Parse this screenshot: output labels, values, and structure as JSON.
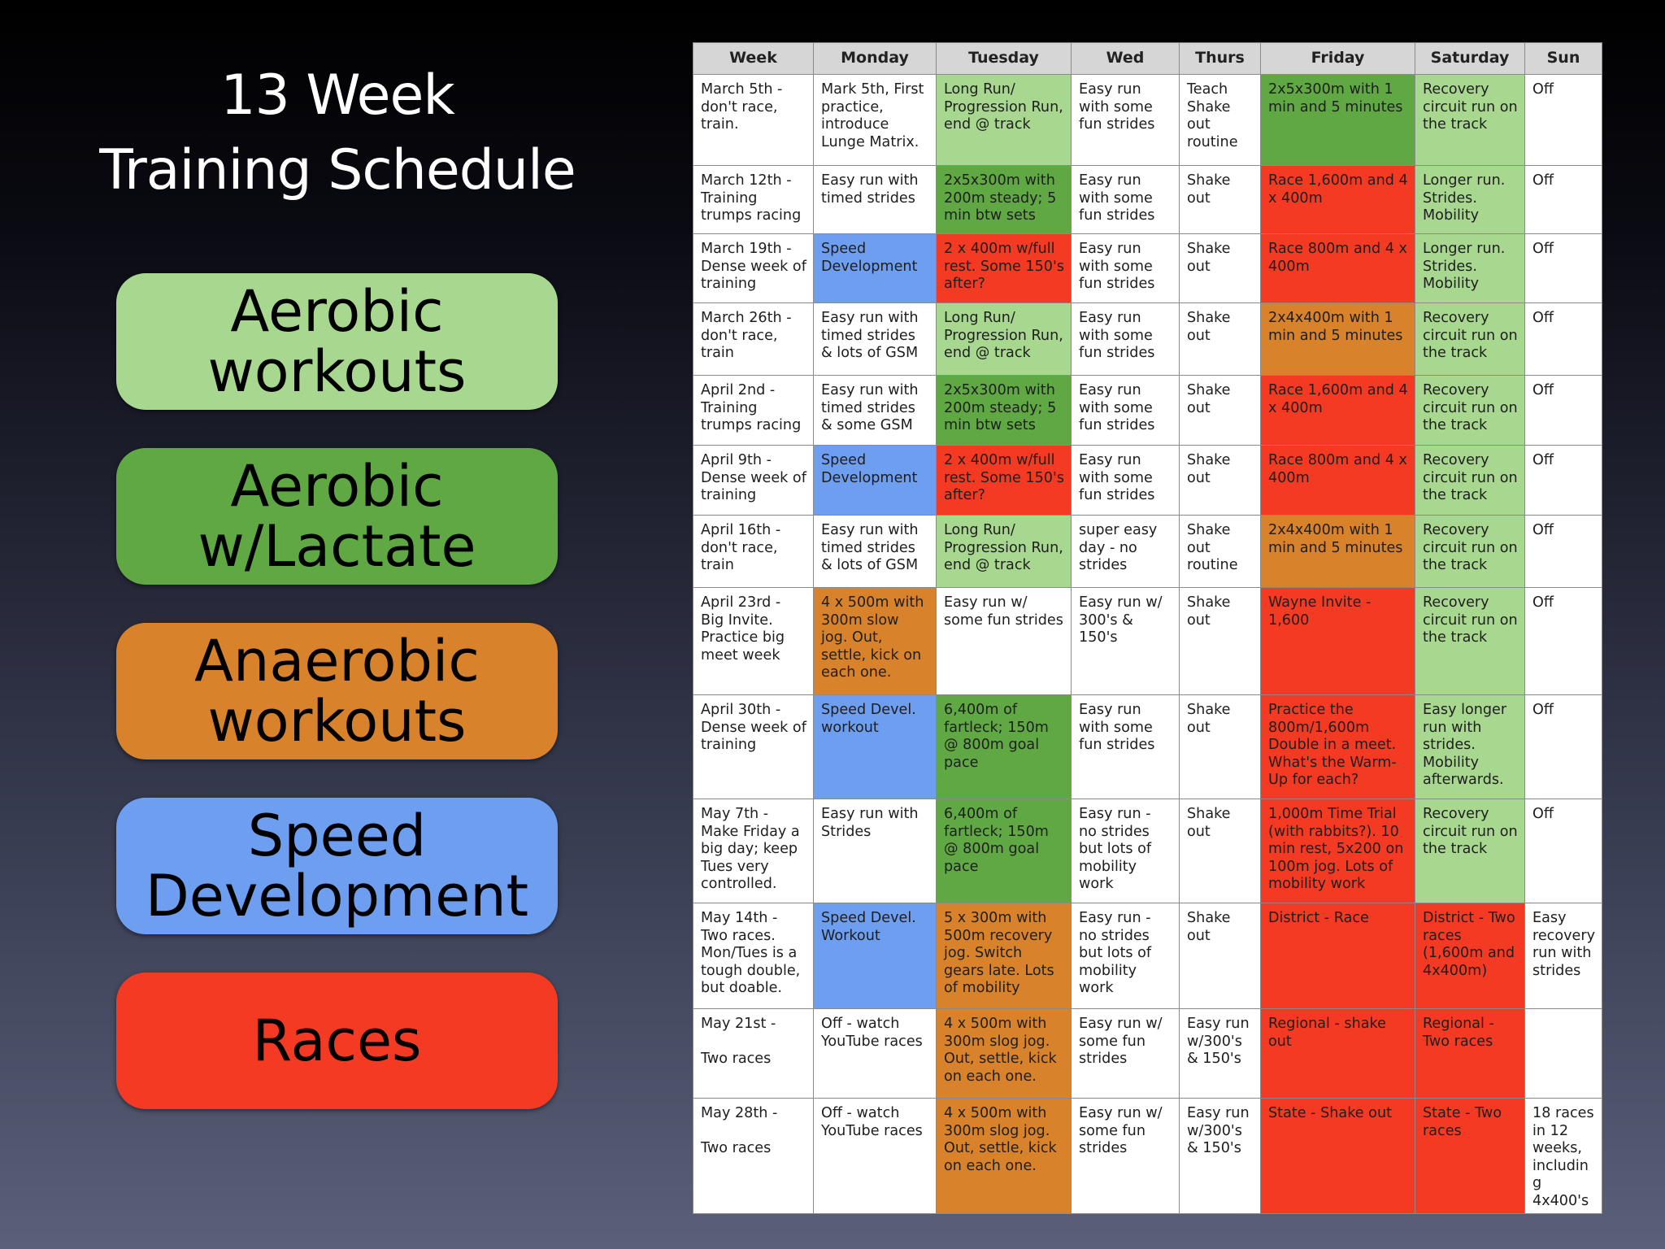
{
  "slide": {
    "title_line1": "13 Week",
    "title_line2": "Training Schedule"
  },
  "colors": {
    "aerobic": "#a8d890",
    "lactate": "#5fa844",
    "anaerobic": "#d8822c",
    "speed": "#6e9ef0",
    "race": "#f43a22",
    "off": "#ffffff"
  },
  "legend": [
    {
      "label": "Aerobic\nworkouts",
      "color": "#a8d890"
    },
    {
      "label": "Aerobic\nw/Lactate",
      "color": "#5fa844"
    },
    {
      "label": "Anaerobic\nworkouts",
      "color": "#d8822c"
    },
    {
      "label": "Speed\nDevelopment",
      "color": "#6e9ef0"
    },
    {
      "label": "Races",
      "color": "#f43a22"
    }
  ],
  "schedule": {
    "headers": [
      "Week",
      "Monday",
      "Tuesday",
      "Wed",
      "Thurs",
      "Friday",
      "Saturday",
      "Sun"
    ],
    "rows": [
      [
        {
          "text": "March 5th -\ndon't race,\ntrain.",
          "type": "none"
        },
        {
          "text": "Mark 5th, First practice, introduce Lunge Matrix.",
          "type": "none"
        },
        {
          "text": "Long Run/ Progression Run, end  @ track",
          "type": "aerobic"
        },
        {
          "text": "Easy run with some fun strides",
          "type": "none"
        },
        {
          "text": "Teach Shake out routine",
          "type": "none"
        },
        {
          "text": "2x5x300m with 1 min and 5 minutes",
          "type": "lactate"
        },
        {
          "text": "Recovery circuit run on the track",
          "type": "aerobic"
        },
        {
          "text": "Off",
          "type": "none"
        }
      ],
      [
        {
          "text": "March 12th -\nTraining\ntrumps racing",
          "type": "none"
        },
        {
          "text": "Easy run with timed strides",
          "type": "none"
        },
        {
          "text": "2x5x300m with 200m steady; 5 min btw sets",
          "type": "lactate"
        },
        {
          "text": "Easy run with some fun strides",
          "type": "none"
        },
        {
          "text": "Shake out",
          "type": "none"
        },
        {
          "text": "Race 1,600m and 4 x 400m",
          "type": "race"
        },
        {
          "text": "Longer run. Strides. Mobility",
          "type": "aerobic"
        },
        {
          "text": "Off",
          "type": "none"
        }
      ],
      [
        {
          "text": "March 19th -\nDense week of\ntraining",
          "type": "none"
        },
        {
          "text": "Speed Development",
          "type": "speed"
        },
        {
          "text": "2 x 400m w/full rest.  Some 150's after?",
          "type": "race"
        },
        {
          "text": "Easy run with some fun strides",
          "type": "none"
        },
        {
          "text": "Shake out",
          "type": "none"
        },
        {
          "text": "Race 800m and 4 x 400m",
          "type": "race"
        },
        {
          "text": "Longer run. Strides. Mobility",
          "type": "aerobic"
        },
        {
          "text": "Off",
          "type": "none"
        }
      ],
      [
        {
          "text": "March 26th -\ndon't race,\ntrain",
          "type": "none"
        },
        {
          "text": "Easy run with timed strides & lots of GSM",
          "type": "none"
        },
        {
          "text": "Long Run/ Progression Run, end  @ track",
          "type": "aerobic"
        },
        {
          "text": "Easy run with some fun strides",
          "type": "none"
        },
        {
          "text": "Shake out",
          "type": "none"
        },
        {
          "text": "2x4x400m with 1 min and 5 minutes",
          "type": "anaerobic"
        },
        {
          "text": "Recovery circuit run on the track",
          "type": "aerobic"
        },
        {
          "text": "Off",
          "type": "none"
        }
      ],
      [
        {
          "text": "April 2nd -\nTraining\ntrumps racing",
          "type": "none"
        },
        {
          "text": "Easy run with timed strides & some GSM",
          "type": "none"
        },
        {
          "text": "2x5x300m with 200m steady; 5 min btw sets",
          "type": "lactate"
        },
        {
          "text": "Easy run with some fun strides",
          "type": "none"
        },
        {
          "text": "Shake out",
          "type": "none"
        },
        {
          "text": "Race 1,600m and 4 x 400m",
          "type": "race"
        },
        {
          "text": "Recovery circuit run on the track",
          "type": "aerobic"
        },
        {
          "text": "Off",
          "type": "none"
        }
      ],
      [
        {
          "text": "April 9th -\nDense week of\ntraining",
          "type": "none"
        },
        {
          "text": "Speed Development",
          "type": "speed"
        },
        {
          "text": "2 x 400m w/full rest.  Some 150's after?",
          "type": "race"
        },
        {
          "text": "Easy run with some fun strides",
          "type": "none"
        },
        {
          "text": "Shake out",
          "type": "none"
        },
        {
          "text": "Race 800m and 4 x 400m",
          "type": "race"
        },
        {
          "text": "Recovery circuit run on the track",
          "type": "aerobic"
        },
        {
          "text": "Off",
          "type": "none"
        }
      ],
      [
        {
          "text": "April 16th -\ndon't race,\ntrain",
          "type": "none"
        },
        {
          "text": "Easy run with timed strides & lots of GSM",
          "type": "none"
        },
        {
          "text": "Long Run/ Progression Run, end  @ track",
          "type": "aerobic"
        },
        {
          "text": "super easy day - no strides",
          "type": "none"
        },
        {
          "text": "Shake out routine",
          "type": "none"
        },
        {
          "text": "2x4x400m with 1 min and 5 minutes",
          "type": "anaerobic"
        },
        {
          "text": "Recovery circuit run on the track",
          "type": "aerobic"
        },
        {
          "text": "Off",
          "type": "none"
        }
      ],
      [
        {
          "text": "April 23rd -\nBig Invite.\nPractice big\nmeet week",
          "type": "none"
        },
        {
          "text": "4 x 500m with 300m slow jog.  Out, settle, kick on each one.",
          "type": "anaerobic"
        },
        {
          "text": "Easy run w/ some  fun strides",
          "type": "none"
        },
        {
          "text": "Easy run w/ 300's & 150's",
          "type": "none"
        },
        {
          "text": "Shake out",
          "type": "none"
        },
        {
          "text": "Wayne Invite - 1,600",
          "type": "race"
        },
        {
          "text": "Recovery circuit run on the track",
          "type": "aerobic"
        },
        {
          "text": "Off",
          "type": "none"
        }
      ],
      [
        {
          "text": "April 30th -\nDense week of\ntraining",
          "type": "none"
        },
        {
          "text": "Speed Devel. workout",
          "type": "speed"
        },
        {
          "text": "6,400m of fartleck; 150m @ 800m goal pace",
          "type": "lactate"
        },
        {
          "text": "Easy run with some fun strides",
          "type": "none"
        },
        {
          "text": "Shake out",
          "type": "none"
        },
        {
          "text": "Practice the 800m/1,600m Double in a meet. What's the Warm-Up for each?",
          "type": "race"
        },
        {
          "text": "Easy longer run with strides. Mobility afterwards.",
          "type": "aerobic"
        },
        {
          "text": "Off",
          "type": "none"
        }
      ],
      [
        {
          "text": "May 7th -\nMake Friday a\nbig day; keep\nTues very\ncontrolled.",
          "type": "none"
        },
        {
          "text": "Easy run with Strides",
          "type": "none"
        },
        {
          "text": "6,400m of fartleck; 150m @ 800m goal pace",
          "type": "lactate"
        },
        {
          "text": "Easy run - no strides but lots of mobility work",
          "type": "none"
        },
        {
          "text": "Shake out",
          "type": "none"
        },
        {
          "text": "1,000m Time Trial (with rabbits?).  10 min rest, 5x200 on 100m jog.  Lots of mobility work",
          "type": "race"
        },
        {
          "text": "Recovery circuit run on the track",
          "type": "aerobic"
        },
        {
          "text": "Off",
          "type": "none"
        }
      ],
      [
        {
          "text": "May 14th -\nTwo races.\nMon/Tues is a\ntough double,\nbut doable.",
          "type": "none"
        },
        {
          "text": "Speed Devel. Workout",
          "type": "speed"
        },
        {
          "text": "5 x 300m with 500m recovery jog.  Switch gears late.  Lots of mobility",
          "type": "anaerobic"
        },
        {
          "text": "Easy run - no strides but lots of mobility work",
          "type": "none"
        },
        {
          "text": "Shake out",
          "type": "none"
        },
        {
          "text": "District - Race",
          "type": "race"
        },
        {
          "text": "District - Two races (1,600m and 4x400m)",
          "type": "race"
        },
        {
          "text": "Easy recovery run with strides",
          "type": "none"
        }
      ],
      [
        {
          "text": "May 21st -\n\nTwo races",
          "type": "none"
        },
        {
          "text": "Off - watch YouTube races",
          "type": "none"
        },
        {
          "text": "4 x 500m with 300m slog jog. Out, settle, kick on each one.",
          "type": "anaerobic"
        },
        {
          "text": "Easy run w/ some  fun strides",
          "type": "none"
        },
        {
          "text": "Easy run w/300's & 150's",
          "type": "none"
        },
        {
          "text": "Regional - shake out",
          "type": "race"
        },
        {
          "text": "Regional - Two races",
          "type": "race"
        },
        {
          "text": "",
          "type": "none"
        }
      ],
      [
        {
          "text": "May 28th -\n\nTwo races",
          "type": "none"
        },
        {
          "text": "Off - watch YouTube races",
          "type": "none"
        },
        {
          "text": "4 x 500m with 300m slog jog. Out, settle, kick on each one.",
          "type": "anaerobic"
        },
        {
          "text": "Easy run w/ some  fun strides",
          "type": "none"
        },
        {
          "text": "Easy run w/300's & 150's",
          "type": "none"
        },
        {
          "text": "State - Shake out",
          "type": "race"
        },
        {
          "text": "State - Two races",
          "type": "race"
        },
        {
          "text": "18 races in 12 weeks, including 4x400's",
          "type": "none"
        }
      ]
    ]
  }
}
